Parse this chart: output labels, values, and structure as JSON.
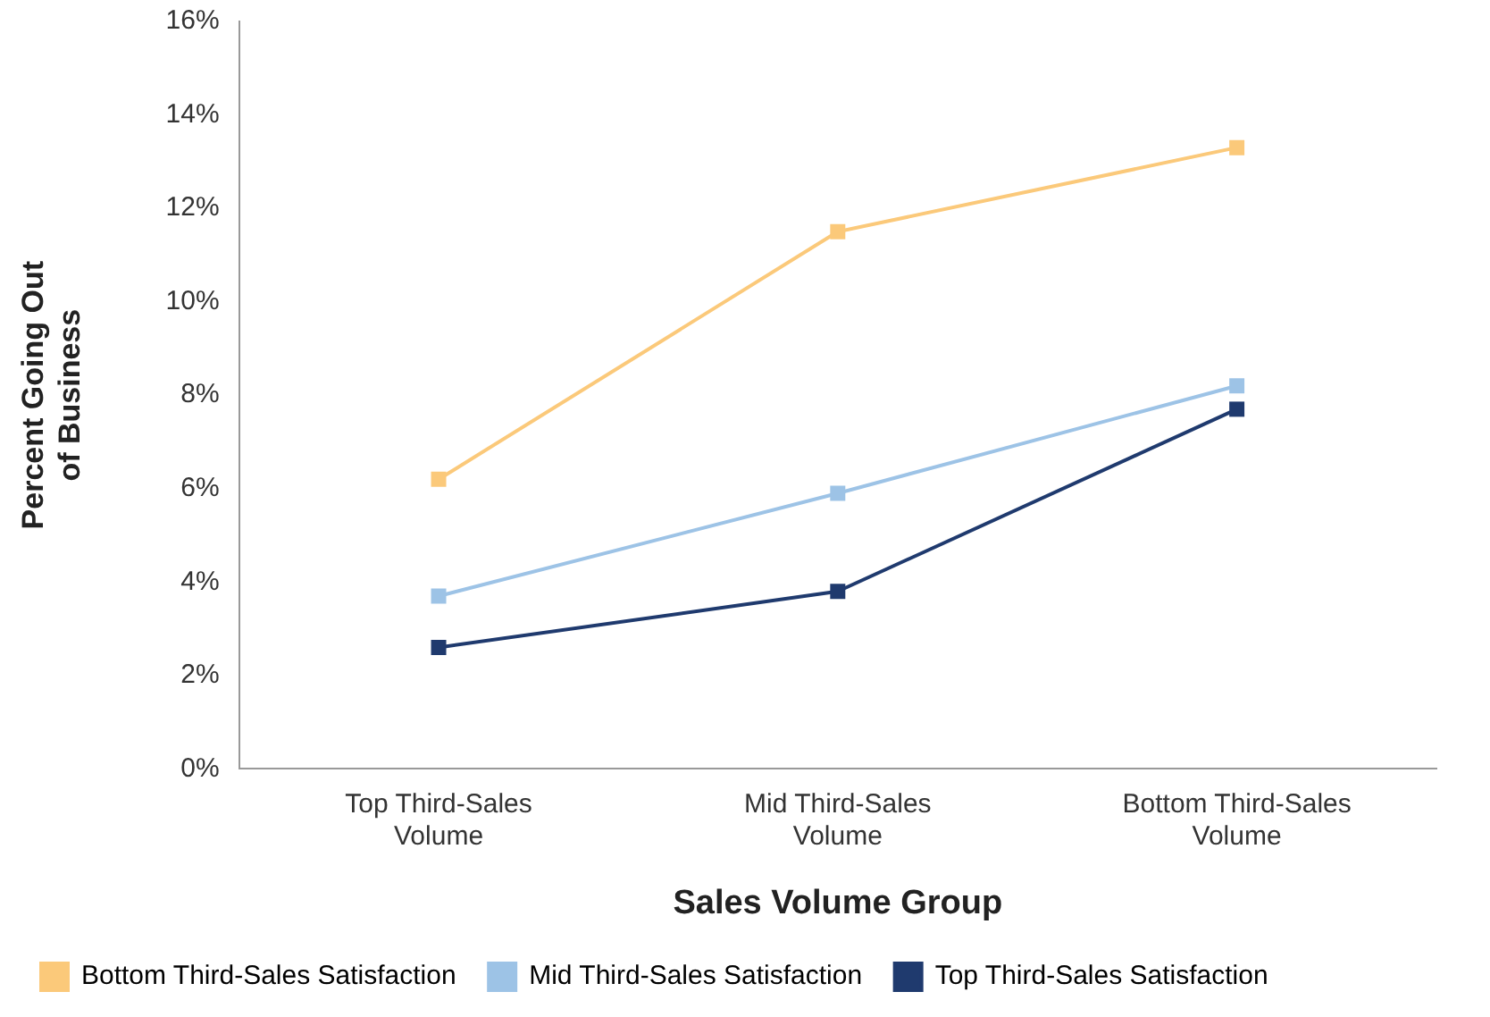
{
  "chart_data": {
    "type": "line",
    "xlabel": "Sales Volume Group",
    "ylabel": "Percent Going Out of Business",
    "categories": [
      "Top Third-Sales Volume",
      "Mid Third-Sales Volume",
      "Bottom Third-Sales Volume"
    ],
    "series": [
      {
        "name": "Bottom Third-Sales Satisfaction",
        "color": "#fbc97a",
        "values": [
          6.2,
          11.5,
          13.3
        ]
      },
      {
        "name": "Mid Third-Sales Satisfaction",
        "color": "#9dc3e6",
        "values": [
          3.7,
          5.9,
          8.2
        ]
      },
      {
        "name": "Top Third-Sales Satisfaction",
        "color": "#1f3a6e",
        "values": [
          2.6,
          3.8,
          7.7
        ]
      }
    ],
    "ylim": [
      0,
      16
    ],
    "yticks": [
      {
        "value": 0,
        "label": "0%"
      },
      {
        "value": 2,
        "label": "2%"
      },
      {
        "value": 4,
        "label": "4%"
      },
      {
        "value": 6,
        "label": "6%"
      },
      {
        "value": 8,
        "label": "8%"
      },
      {
        "value": 10,
        "label": "10%"
      },
      {
        "value": 12,
        "label": "12%"
      },
      {
        "value": 14,
        "label": "14%"
      },
      {
        "value": 16,
        "label": "16%"
      }
    ],
    "grid": false,
    "legend": "bottom",
    "marker": "square",
    "line_style": "solid"
  }
}
